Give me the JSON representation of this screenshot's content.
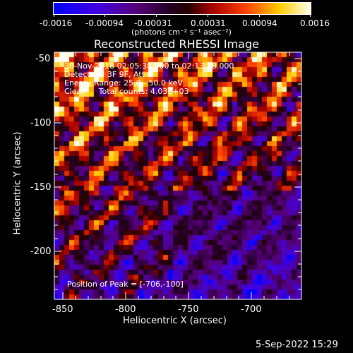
{
  "colorbar": {
    "ticks": [
      "-0.0016",
      "-0.00094",
      "-0.00031",
      "0.00031",
      "0.00094",
      "0.0016"
    ],
    "unit_label": "(photons cm⁻² s⁻¹ asec⁻²)",
    "min": -0.0016,
    "max": 0.0016
  },
  "title": "Reconstructed RHESSI Image",
  "overlay": {
    "line1": "30-Nov-2018 02:05:38.000 to 02:13:28.000",
    "line2": "Detectors: 3F 9F, Att 0",
    "line3": "Energy Range: 25.0 - 50.0 keV",
    "line4": "Clean     Total counts: 4.03E+03",
    "peak": "Position of Peak = [-706,-100]"
  },
  "axes": {
    "xlabel": "Heliocentric X (arcsec)",
    "ylabel": "Heliocentric Y (arcsec)",
    "xticks": [
      "-850",
      "-800",
      "-750",
      "-700"
    ],
    "yticks": [
      "-50",
      "-100",
      "-150",
      "-200"
    ],
    "xlim": [
      -862,
      -665
    ],
    "ylim": [
      -237,
      -45
    ]
  },
  "date_stamp": "5-Sep-2022 15:29"
}
